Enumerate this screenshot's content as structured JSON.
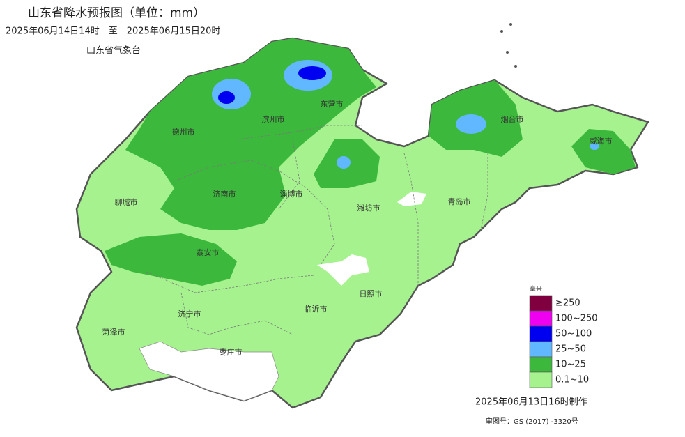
{
  "header": {
    "title": "山东省降水预报图（单位：mm）",
    "period": "2025年06月14日14时　至　2025年06月15日20时",
    "issuer": "山东省气象台"
  },
  "cities": [
    "德州市",
    "滨州市",
    "东营市",
    "烟台市",
    "威海市",
    "聊城市",
    "济南市",
    "淄博市",
    "潍坊市",
    "青岛市",
    "泰安市",
    "日照市",
    "临沂市",
    "济宁市",
    "菏泽市",
    "枣庄市"
  ],
  "legend": {
    "unit": "毫米",
    "items": [
      {
        "label": "≥250",
        "color": "#80003f"
      },
      {
        "label": "100~250",
        "color": "#f000f0"
      },
      {
        "label": "50~100",
        "color": "#0000f0"
      },
      {
        "label": "25~50",
        "color": "#61b8ff"
      },
      {
        "label": "10~25",
        "color": "#3cb93c"
      },
      {
        "label": "0.1~10",
        "color": "#a6f28f"
      }
    ]
  },
  "footer": {
    "made": "2025年06月13日16时制作",
    "map_no": "审图号：GS (2017) -3320号"
  }
}
